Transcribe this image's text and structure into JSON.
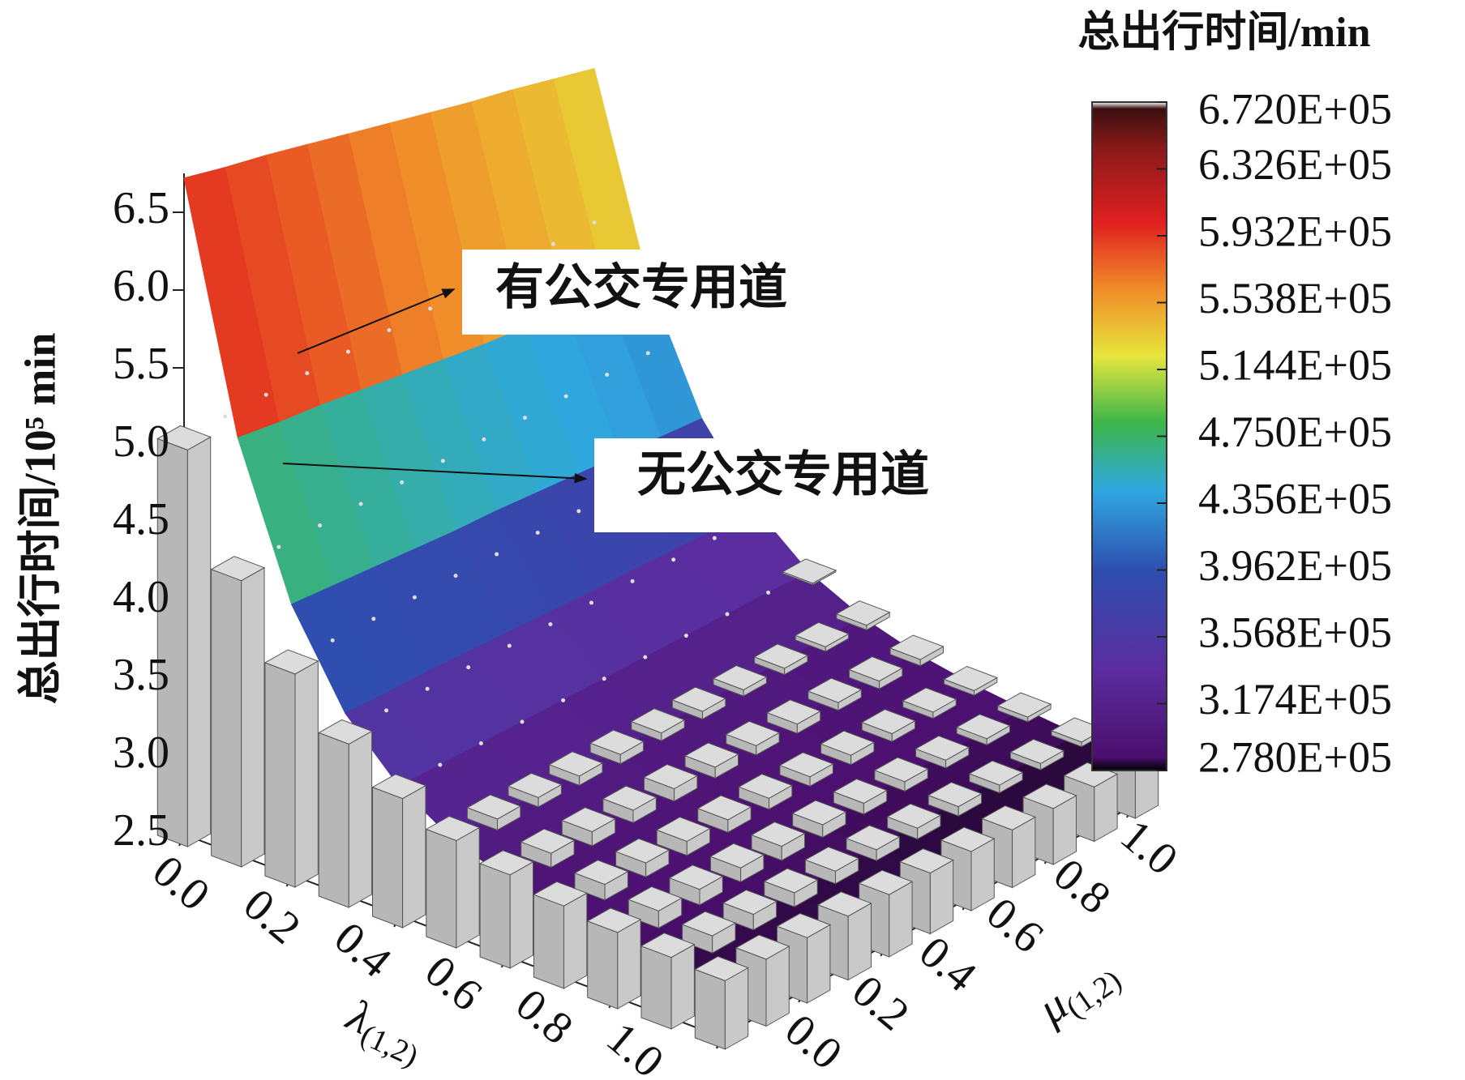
{
  "chart_data": {
    "type": "surface3d",
    "xlabel": {
      "symbol": "λ",
      "subscript": "(1,2)"
    },
    "ylabel": {
      "symbol": "μ",
      "subscript": "(1,2)"
    },
    "zlabel": "总出行时间/10⁵ min",
    "x": [
      0,
      0.1,
      0.2,
      0.3,
      0.4,
      0.5,
      0.6,
      0.7,
      0.8,
      0.9,
      1
    ],
    "y": [
      0,
      0.1,
      0.2,
      0.3,
      0.4,
      0.5,
      0.6,
      0.7,
      0.8,
      0.9,
      1
    ],
    "xlim": [
      0,
      1
    ],
    "ylim": [
      0,
      1
    ],
    "zlim": [
      2.5,
      6.75
    ],
    "xticks": [
      {
        "value": 0,
        "label": "0.0"
      },
      0.2,
      0.4,
      0.6,
      0.8,
      {
        "value": 1,
        "label": "1.0"
      }
    ],
    "yticks": [
      {
        "value": 0,
        "label": "0.0"
      },
      0.2,
      0.4,
      0.6,
      0.8,
      {
        "value": 1,
        "label": "1.0"
      }
    ],
    "zticks": [
      2.5,
      {
        "value": 3,
        "label": "3.0"
      },
      3.5,
      {
        "value": 4,
        "label": "4.0"
      },
      4.5,
      {
        "value": 5,
        "label": "5.0"
      },
      5.5,
      {
        "value": 6,
        "label": "6.0"
      },
      6.5
    ],
    "series": [
      {
        "name": "有公交专用道",
        "kind": "surface",
        "values": [
          [
            6.72,
            6.64,
            6.57,
            6.49,
            6.41,
            6.33,
            6.25,
            6.17,
            6.1,
            6.02,
            5.94
          ],
          [
            5.18,
            5.13,
            5.09,
            5.04,
            4.99,
            4.94,
            4.89,
            4.85,
            4.8,
            4.75,
            4.7
          ],
          [
            4.24,
            4.21,
            4.18,
            4.15,
            4.12,
            4.1,
            4.07,
            4.04,
            4.01,
            3.98,
            3.95
          ],
          [
            3.67,
            3.65,
            3.64,
            3.62,
            3.6,
            3.58,
            3.56,
            3.55,
            3.53,
            3.51,
            3.5
          ],
          [
            3.33,
            3.32,
            3.31,
            3.3,
            3.29,
            3.28,
            3.27,
            3.26,
            3.25,
            3.24,
            3.22
          ],
          [
            3.12,
            3.11,
            3.11,
            3.1,
            3.09,
            3.09,
            3.08,
            3.08,
            3.07,
            3.07,
            3.06
          ],
          [
            3.0,
            3.0,
            2.99,
            2.99,
            2.98,
            2.98,
            2.98,
            2.97,
            2.97,
            2.96,
            2.96
          ],
          [
            2.92,
            2.92,
            2.92,
            2.91,
            2.91,
            2.91,
            2.91,
            2.9,
            2.9,
            2.9,
            2.9
          ],
          [
            2.87,
            2.87,
            2.87,
            2.87,
            2.86,
            2.86,
            2.86,
            2.86,
            2.86,
            2.86,
            2.86
          ],
          [
            2.84,
            2.84,
            2.84,
            2.84,
            2.84,
            2.84,
            2.83,
            2.83,
            2.83,
            2.83,
            2.83
          ],
          [
            2.83,
            2.83,
            2.83,
            2.82,
            2.82,
            2.82,
            2.82,
            2.82,
            2.82,
            2.82,
            2.82
          ]
        ]
      },
      {
        "name": "无公交专用道",
        "kind": "bar",
        "color": "#c9c9c9",
        "values": [
          [
            5.05,
            5.04,
            5.03,
            5.02,
            5.01,
            5.0,
            4.99,
            4.98,
            4.97,
            4.96,
            4.95
          ],
          [
            4.34,
            4.33,
            4.32,
            4.31,
            4.3,
            4.29,
            4.28,
            4.27,
            4.26,
            4.25,
            4.24
          ],
          [
            3.87,
            3.86,
            3.85,
            3.84,
            3.83,
            3.82,
            3.81,
            3.8,
            3.79,
            3.78,
            3.77
          ],
          [
            3.55,
            3.54,
            3.53,
            3.52,
            3.51,
            3.5,
            3.49,
            3.48,
            3.47,
            3.46,
            3.45
          ],
          [
            3.33,
            3.32,
            3.31,
            3.3,
            3.29,
            3.28,
            3.27,
            3.26,
            3.25,
            3.24,
            3.23
          ],
          [
            3.19,
            3.18,
            3.17,
            3.16,
            3.15,
            3.14,
            3.13,
            3.12,
            3.11,
            3.1,
            3.09
          ],
          [
            3.1,
            3.09,
            3.08,
            3.07,
            3.06,
            3.05,
            3.04,
            3.03,
            3.02,
            3.01,
            3.0
          ],
          [
            3.03,
            3.02,
            3.01,
            3.0,
            2.99,
            2.98,
            2.97,
            2.96,
            2.95,
            2.94,
            2.93
          ],
          [
            2.99,
            2.98,
            2.97,
            2.96,
            2.95,
            2.94,
            2.93,
            2.92,
            2.91,
            2.9,
            2.89
          ],
          [
            2.96,
            2.95,
            2.94,
            2.93,
            2.92,
            2.91,
            2.9,
            2.89,
            2.88,
            2.87,
            2.86
          ],
          [
            2.94,
            2.93,
            2.92,
            2.91,
            2.9,
            2.89,
            2.88,
            2.87,
            2.86,
            2.85,
            2.84
          ]
        ]
      }
    ],
    "colorbar": {
      "title": "总出行时间/min",
      "clim": [
        2.78,
        6.72
      ],
      "ticks": [
        {
          "value": 6.72,
          "label": "6.720E+05"
        },
        {
          "value": 6.326,
          "label": "6.326E+05"
        },
        {
          "value": 5.932,
          "label": "5.932E+05"
        },
        {
          "value": 5.538,
          "label": "5.538E+05"
        },
        {
          "value": 5.144,
          "label": "5.144E+05"
        },
        {
          "value": 4.75,
          "label": "4.750E+05"
        },
        {
          "value": 4.356,
          "label": "4.356E+05"
        },
        {
          "value": 3.962,
          "label": "3.962E+05"
        },
        {
          "value": 3.568,
          "label": "3.568E+05"
        },
        {
          "value": 3.174,
          "label": "3.174E+05"
        },
        {
          "value": 2.78,
          "label": "2.780E+05"
        }
      ]
    }
  }
}
